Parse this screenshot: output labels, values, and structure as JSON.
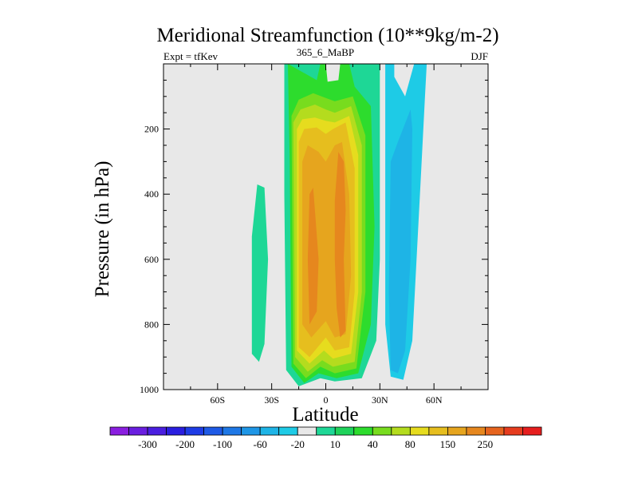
{
  "chart_data": {
    "type": "contour",
    "title": "Meridional Streamfunction (10**9kg/m-2)",
    "left_label": "Expt = tfKev",
    "center_label": "365_6_MaBP",
    "right_label": "DJF",
    "xlabel": "Latitude",
    "ylabel": "Pressure (in hPa)",
    "xlim": [
      -90,
      90
    ],
    "ylim": [
      1000,
      0
    ],
    "y_reversed": true,
    "grid": false,
    "x_ticks": [
      {
        "value": -60,
        "label": "60S"
      },
      {
        "value": -30,
        "label": "30S"
      },
      {
        "value": 0,
        "label": "0"
      },
      {
        "value": 30,
        "label": "30N"
      },
      {
        "value": 60,
        "label": "60N"
      }
    ],
    "y_ticks": [
      {
        "value": 200,
        "label": "200"
      },
      {
        "value": 400,
        "label": "400"
      },
      {
        "value": 600,
        "label": "600"
      },
      {
        "value": 800,
        "label": "800"
      },
      {
        "value": 1000,
        "label": "1000"
      }
    ],
    "background_color": "#e8e8e8",
    "colorbar": {
      "colors": [
        "#8a1ee0",
        "#6a1ee0",
        "#4a1ee0",
        "#2a1ee0",
        "#1e3ce6",
        "#1e5ae6",
        "#1e78e6",
        "#1e96e6",
        "#1eb4e6",
        "#1ecbe6",
        "#e8e8e8",
        "#1ed796",
        "#1ed25a",
        "#2ddc2d",
        "#78dc1e",
        "#b4dc1e",
        "#e6dc1e",
        "#e6be1e",
        "#e6a51e",
        "#e6871e",
        "#e6641e",
        "#e63c1e",
        "#e61e1e"
      ],
      "labels": [
        "-300",
        "-200",
        "-100",
        "-60",
        "-20",
        "10",
        "40",
        "80",
        "150",
        "250"
      ],
      "label_positions": [
        1,
        3,
        5,
        7,
        9,
        11,
        13,
        15,
        17,
        19
      ]
    },
    "fields": [
      {
        "name": "positive-cell-10",
        "level": 10,
        "color": "#1ed796",
        "polygon": [
          [
            -23,
            0
          ],
          [
            -23,
            400
          ],
          [
            -22,
            940
          ],
          [
            -15,
            990
          ],
          [
            -3,
            965
          ],
          [
            5,
            975
          ],
          [
            20,
            965
          ],
          [
            28,
            850
          ],
          [
            30,
            600
          ],
          [
            30,
            0
          ],
          [
            10,
            0
          ],
          [
            10,
            50
          ],
          [
            0,
            60
          ],
          [
            -1,
            0
          ]
        ]
      },
      {
        "name": "southern-cell-10",
        "level": 10,
        "color": "#1ed796",
        "polygon": [
          [
            -41,
            530
          ],
          [
            -38,
            370
          ],
          [
            -34,
            380
          ],
          [
            -32,
            600
          ],
          [
            -34,
            860
          ],
          [
            -37,
            915
          ],
          [
            -41,
            890
          ]
        ]
      },
      {
        "name": "positive-cell-20",
        "level": 20,
        "color": "#2ddc2d",
        "polygon": [
          [
            -21,
            0
          ],
          [
            -20,
            300
          ],
          [
            -19,
            930
          ],
          [
            -12,
            980
          ],
          [
            -4,
            950
          ],
          [
            6,
            965
          ],
          [
            18,
            950
          ],
          [
            25,
            800
          ],
          [
            27,
            500
          ],
          [
            25,
            130
          ],
          [
            16,
            70
          ],
          [
            13,
            0
          ],
          [
            8,
            0
          ],
          [
            7,
            50
          ],
          [
            1,
            55
          ],
          [
            0,
            0
          ],
          [
            -3,
            0
          ],
          [
            -5,
            50
          ]
        ]
      },
      {
        "name": "positive-cell-40",
        "level": 40,
        "color": "#78dc1e",
        "polygon": [
          [
            -19,
            160
          ],
          [
            -18,
            920
          ],
          [
            -11,
            965
          ],
          [
            -3,
            930
          ],
          [
            5,
            950
          ],
          [
            17,
            935
          ],
          [
            22,
            700
          ],
          [
            22,
            220
          ],
          [
            15,
            100
          ],
          [
            5,
            115
          ],
          [
            0,
            105
          ],
          [
            -7,
            90
          ],
          [
            -15,
            110
          ]
        ]
      },
      {
        "name": "positive-cell-60",
        "level": 60,
        "color": "#b4dc1e",
        "polygon": [
          [
            -18,
            180
          ],
          [
            -17,
            900
          ],
          [
            -10,
            945
          ],
          [
            -2,
            910
          ],
          [
            4,
            930
          ],
          [
            16,
            915
          ],
          [
            20,
            700
          ],
          [
            20,
            250
          ],
          [
            14,
            130
          ],
          [
            5,
            150
          ],
          [
            0,
            140
          ],
          [
            -6,
            125
          ],
          [
            -14,
            140
          ]
        ]
      },
      {
        "name": "positive-cell-80",
        "level": 80,
        "color": "#e6dc1e",
        "polygon": [
          [
            -16,
            200
          ],
          [
            -16,
            880
          ],
          [
            -9,
            920
          ],
          [
            -1,
            880
          ],
          [
            4,
            905
          ],
          [
            14,
            890
          ],
          [
            18,
            700
          ],
          [
            18,
            280
          ],
          [
            13,
            160
          ],
          [
            5,
            180
          ],
          [
            0,
            175
          ],
          [
            -6,
            165
          ],
          [
            -13,
            170
          ]
        ]
      },
      {
        "name": "positive-cell-100",
        "level": 100,
        "color": "#e6be1e",
        "polygon": [
          [
            -15,
            240
          ],
          [
            -15,
            870
          ],
          [
            -9,
            900
          ],
          [
            0,
            840
          ],
          [
            5,
            880
          ],
          [
            13,
            870
          ],
          [
            16,
            700
          ],
          [
            16,
            320
          ],
          [
            11,
            180
          ],
          [
            4,
            200
          ],
          [
            0,
            215
          ],
          [
            -5,
            195
          ],
          [
            -12,
            200
          ]
        ]
      },
      {
        "name": "positive-cell-150",
        "level": 150,
        "color": "#e6a51e",
        "polygon": [
          [
            -13,
            300
          ],
          [
            -13,
            800
          ],
          [
            -8,
            840
          ],
          [
            0,
            790
          ],
          [
            5,
            840
          ],
          [
            11,
            830
          ],
          [
            14,
            650
          ],
          [
            13,
            400
          ],
          [
            9,
            240
          ],
          [
            5,
            250
          ],
          [
            0,
            300
          ],
          [
            -4,
            270
          ],
          [
            -10,
            250
          ]
        ]
      },
      {
        "name": "positive-cell-200-a",
        "level": 200,
        "color": "#e6871e",
        "polygon": [
          [
            -9,
            400
          ],
          [
            -10,
            600
          ],
          [
            -9,
            800
          ],
          [
            -5,
            760
          ],
          [
            -4,
            600
          ],
          [
            -6,
            450
          ],
          [
            -7,
            380
          ]
        ]
      },
      {
        "name": "positive-cell-200-b",
        "level": 200,
        "color": "#e6871e",
        "polygon": [
          [
            7,
            270
          ],
          [
            5,
            420
          ],
          [
            5,
            600
          ],
          [
            6,
            750
          ],
          [
            8,
            840
          ],
          [
            11,
            820
          ],
          [
            10,
            600
          ],
          [
            11,
            450
          ],
          [
            10,
            300
          ]
        ]
      },
      {
        "name": "negative-cell-20",
        "level": -20,
        "color": "#1ecbe6",
        "polygon": [
          [
            33,
            0
          ],
          [
            38,
            0
          ],
          [
            38,
            40
          ],
          [
            44,
            100
          ],
          [
            49,
            0
          ],
          [
            56,
            0
          ],
          [
            55,
            100
          ],
          [
            53,
            320
          ],
          [
            48,
            850
          ],
          [
            43,
            970
          ],
          [
            36,
            960
          ],
          [
            33,
            800
          ]
        ]
      },
      {
        "name": "negative-cell-60",
        "level": -60,
        "color": "#1eb4e6",
        "polygon": [
          [
            36,
            300
          ],
          [
            40,
            240
          ],
          [
            47,
            140
          ],
          [
            48,
            200
          ],
          [
            47,
            600
          ],
          [
            44,
            880
          ],
          [
            40,
            950
          ],
          [
            36,
            940
          ],
          [
            35,
            700
          ]
        ]
      }
    ]
  }
}
